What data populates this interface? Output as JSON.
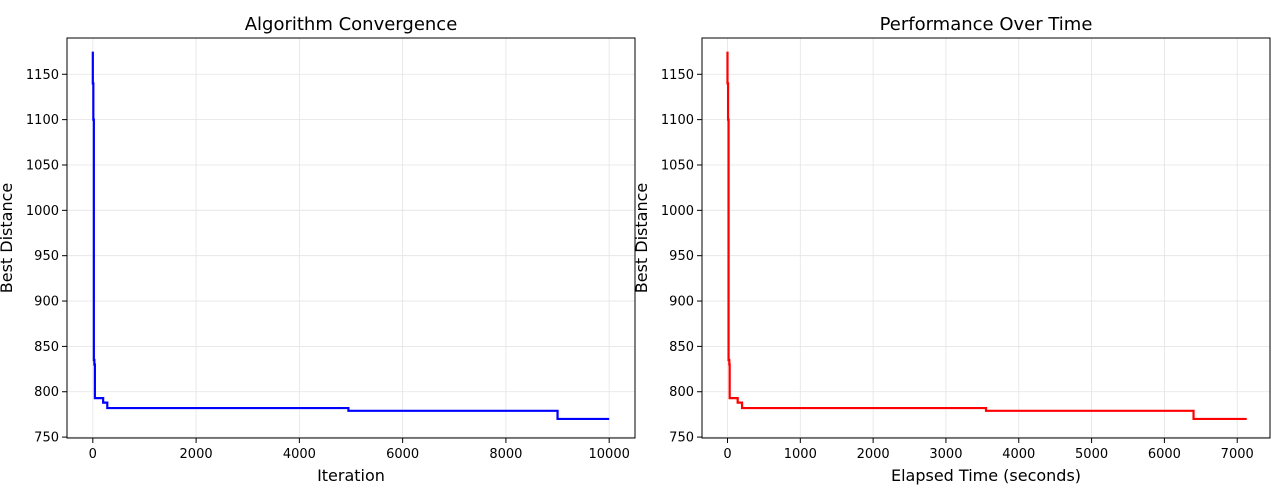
{
  "chart_data": [
    {
      "type": "line",
      "title": "Algorithm Convergence",
      "xlabel": "Iteration",
      "ylabel": "Best Distance",
      "xlim": [
        -500,
        10500
      ],
      "ylim": [
        749,
        1190
      ],
      "xticks": [
        0,
        2000,
        4000,
        6000,
        8000,
        10000
      ],
      "yticks": [
        750,
        800,
        850,
        900,
        950,
        1000,
        1050,
        1100,
        1150
      ],
      "grid": true,
      "color": "#0000ff",
      "series": [
        {
          "step": true,
          "points": [
            [
              0,
              1175
            ],
            [
              0,
              1140
            ],
            [
              10,
              1100
            ],
            [
              20,
              835
            ],
            [
              30,
              830
            ],
            [
              40,
              793
            ],
            [
              200,
              788
            ],
            [
              280,
              782
            ],
            [
              4950,
              779
            ],
            [
              9000,
              770
            ],
            [
              10000,
              770
            ]
          ]
        }
      ]
    },
    {
      "type": "line",
      "title": "Performance Over Time",
      "xlabel": "Elapsed Time (seconds)",
      "ylabel": "Best Distance",
      "xlim": [
        -350,
        7450
      ],
      "ylim": [
        749,
        1190
      ],
      "xticks": [
        0,
        1000,
        2000,
        3000,
        4000,
        5000,
        6000,
        7000
      ],
      "yticks": [
        750,
        800,
        850,
        900,
        950,
        1000,
        1050,
        1100,
        1150
      ],
      "grid": true,
      "color": "#ff0000",
      "series": [
        {
          "step": true,
          "points": [
            [
              0,
              1175
            ],
            [
              0,
              1140
            ],
            [
              8,
              1100
            ],
            [
              15,
              835
            ],
            [
              25,
              830
            ],
            [
              30,
              793
            ],
            [
              140,
              788
            ],
            [
              200,
              782
            ],
            [
              3550,
              779
            ],
            [
              6400,
              770
            ],
            [
              7130,
              770
            ]
          ]
        }
      ]
    }
  ]
}
